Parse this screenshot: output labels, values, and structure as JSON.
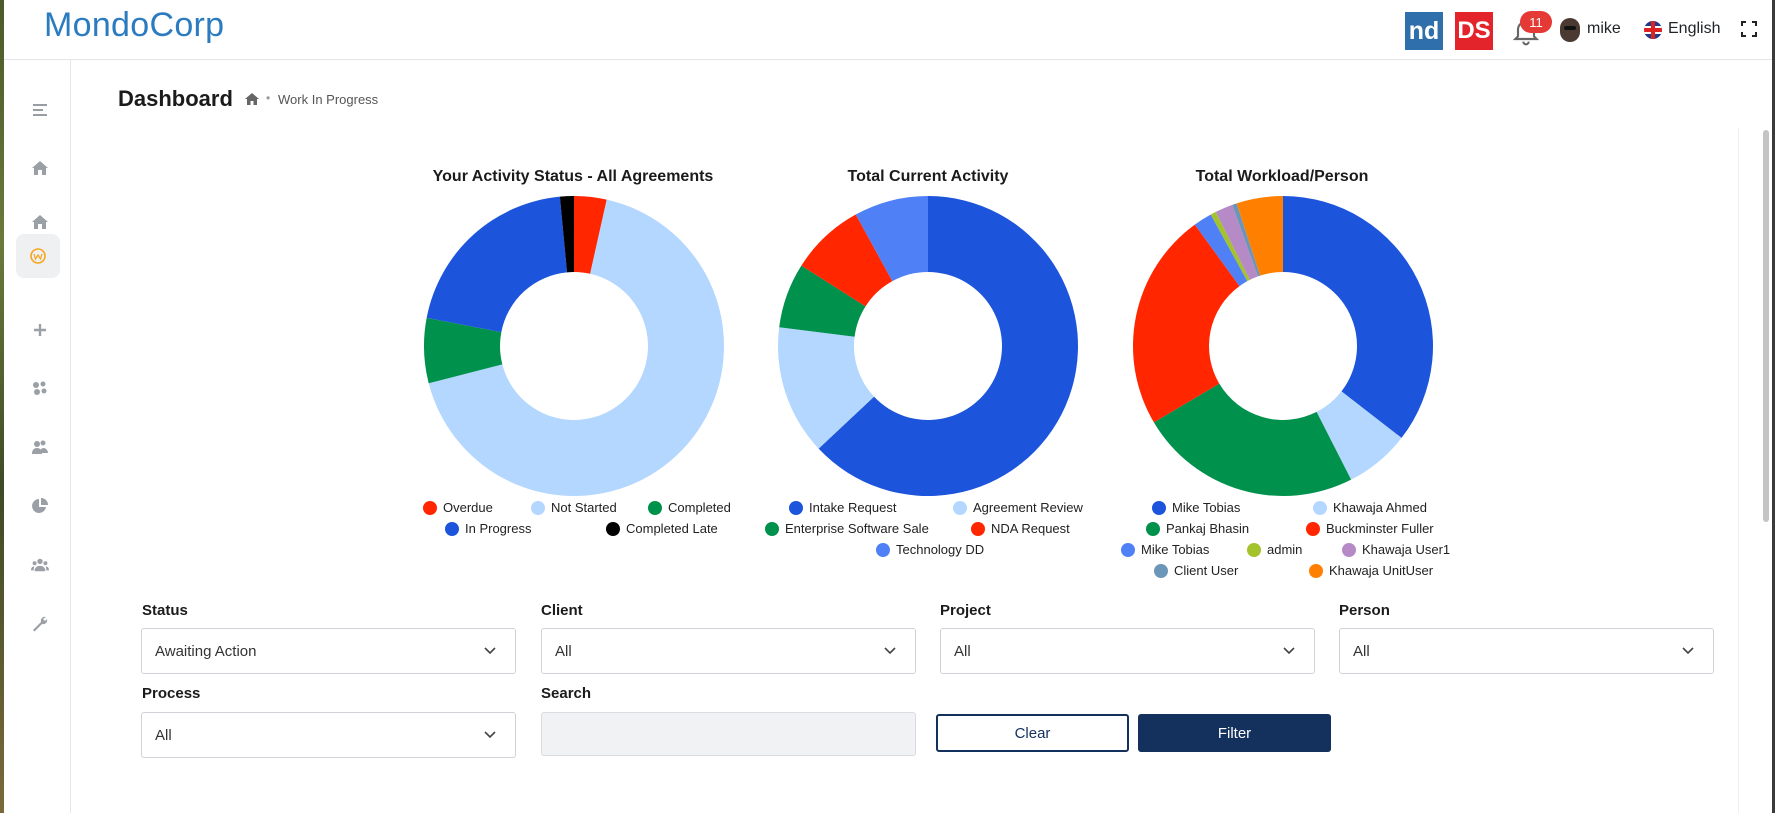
{
  "app": {
    "logo": "MondoCorp"
  },
  "header": {
    "nd_badge": "nd",
    "ds_badge": "DS",
    "notification_count": "11",
    "user_name": "mike",
    "language": "English"
  },
  "page": {
    "title": "Dashboard",
    "breadcrumb": "Work In Progress"
  },
  "sidebar": {
    "items": [
      {
        "icon": "menu-icon"
      },
      {
        "icon": "home-icon"
      },
      {
        "icon": "home-icon"
      },
      {
        "icon": "workflow-icon"
      },
      {
        "icon": "plus-icon"
      },
      {
        "icon": "clients-icon"
      },
      {
        "icon": "teams-icon"
      },
      {
        "icon": "pie-chart-icon"
      },
      {
        "icon": "users-icon"
      },
      {
        "icon": "wrench-icon"
      }
    ]
  },
  "colors": {
    "brand": "#2b7bc0",
    "navy": "#14305c"
  },
  "chart_data": [
    {
      "type": "pie",
      "title": "Your Activity Status - All Agreements",
      "slices": [
        {
          "label": "Overdue",
          "value": 3.5,
          "color": "#ff2600"
        },
        {
          "label": "Not Started",
          "value": 67.5,
          "color": "#b3d7ff"
        },
        {
          "label": "Completed",
          "value": 7,
          "color": "#00914c"
        },
        {
          "label": "In Progress",
          "value": 20.5,
          "color": "#1c54dc"
        },
        {
          "label": "Completed Late",
          "value": 1.5,
          "color": "#000000"
        }
      ]
    },
    {
      "type": "pie",
      "title": "Total Current Activity",
      "slices": [
        {
          "label": "Intake Request",
          "value": 63,
          "color": "#1c54dc"
        },
        {
          "label": "Agreement Review",
          "value": 14,
          "color": "#b3d7ff"
        },
        {
          "label": "Enterprise Software Sale",
          "value": 7,
          "color": "#00914c"
        },
        {
          "label": "NDA Request",
          "value": 8,
          "color": "#ff2600"
        },
        {
          "label": "Technology DD",
          "value": 8,
          "color": "#4f80f5"
        }
      ]
    },
    {
      "type": "pie",
      "title": "Total Workload/Person",
      "slices": [
        {
          "label": "Mike Tobias",
          "value": 35.5,
          "color": "#1c54dc"
        },
        {
          "label": "Khawaja Ahmed",
          "value": 7,
          "color": "#b3d7ff"
        },
        {
          "label": "Pankaj Bhasin",
          "value": 24,
          "color": "#00914c"
        },
        {
          "label": "Buckminster Fuller",
          "value": 23.5,
          "color": "#ff2600"
        },
        {
          "label": "Mike Tobias",
          "value": 2,
          "color": "#4f80f5"
        },
        {
          "label": "admin",
          "value": 0.6,
          "color": "#a4c22c"
        },
        {
          "label": "Khawaja User1",
          "value": 1.9,
          "color": "#b58ac6"
        },
        {
          "label": "Client User",
          "value": 0.5,
          "color": "#6c96b8"
        },
        {
          "label": "Khawaja UnitUser",
          "value": 5,
          "color": "#ff8000"
        }
      ]
    }
  ],
  "filters": {
    "status": {
      "label": "Status",
      "value": "Awaiting Action"
    },
    "client": {
      "label": "Client",
      "value": "All"
    },
    "project": {
      "label": "Project",
      "value": "All"
    },
    "person": {
      "label": "Person",
      "value": "All"
    },
    "process": {
      "label": "Process",
      "value": "All"
    },
    "search": {
      "label": "Search",
      "value": ""
    },
    "clear_label": "Clear",
    "filter_label": "Filter"
  }
}
